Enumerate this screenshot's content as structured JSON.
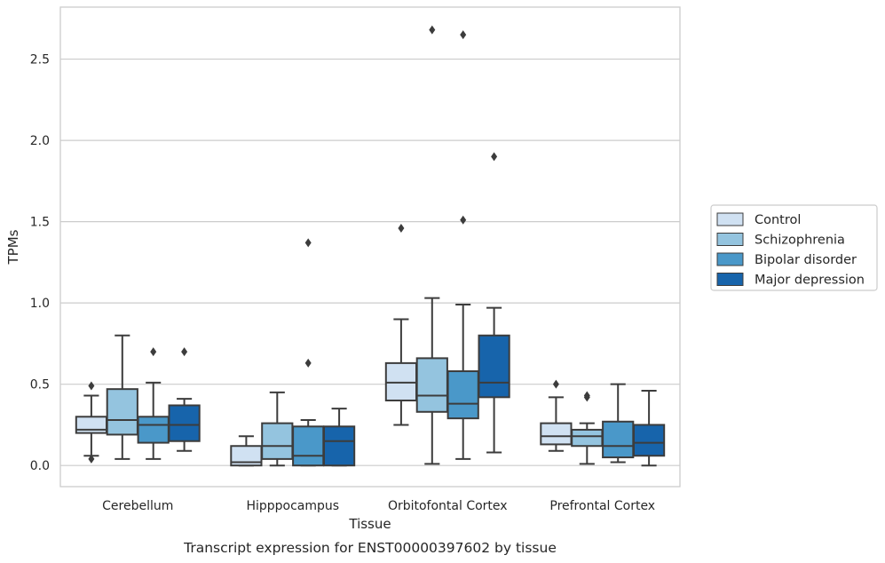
{
  "chart_data": {
    "type": "box",
    "xlabel": "Tissue",
    "ylabel": "TPMs",
    "caption": "Transcript expression for ENST00000397602 by tissue",
    "ylim": [
      -0.13,
      2.82
    ],
    "yticks": [
      0.0,
      0.5,
      1.0,
      1.5,
      2.0,
      2.5
    ],
    "ytick_labels": [
      "0.0",
      "0.5",
      "1.0",
      "1.5",
      "2.0",
      "2.5"
    ],
    "grid": "horizontal",
    "legend_position": "right",
    "categories": [
      "Cerebellum",
      "Hipppocampus",
      "Orbitofontal Cortex",
      "Prefrontal Cortex"
    ],
    "series": [
      {
        "name": "Control",
        "color": "#d0e1f2",
        "boxes": [
          {
            "whislo": 0.06,
            "q1": 0.2,
            "med": 0.22,
            "q3": 0.3,
            "whishi": 0.43,
            "fliers": [
              0.49,
              0.04
            ]
          },
          {
            "whislo": 0.0,
            "q1": 0.0,
            "med": 0.02,
            "q3": 0.12,
            "whishi": 0.18,
            "fliers": []
          },
          {
            "whislo": 0.25,
            "q1": 0.4,
            "med": 0.51,
            "q3": 0.63,
            "whishi": 0.9,
            "fliers": [
              1.46
            ]
          },
          {
            "whislo": 0.09,
            "q1": 0.13,
            "med": 0.18,
            "q3": 0.26,
            "whishi": 0.42,
            "fliers": [
              0.5
            ]
          }
        ]
      },
      {
        "name": "Schizophrenia",
        "color": "#94c4df",
        "boxes": [
          {
            "whislo": 0.04,
            "q1": 0.19,
            "med": 0.28,
            "q3": 0.47,
            "whishi": 0.8,
            "fliers": []
          },
          {
            "whislo": 0.0,
            "q1": 0.04,
            "med": 0.12,
            "q3": 0.26,
            "whishi": 0.45,
            "fliers": []
          },
          {
            "whislo": 0.01,
            "q1": 0.33,
            "med": 0.43,
            "q3": 0.66,
            "whishi": 1.03,
            "fliers": [
              2.68
            ]
          },
          {
            "whislo": 0.01,
            "q1": 0.12,
            "med": 0.18,
            "q3": 0.22,
            "whishi": 0.26,
            "fliers": [
              0.43,
              0.42
            ]
          }
        ]
      },
      {
        "name": "Bipolar disorder",
        "color": "#4a98c9",
        "boxes": [
          {
            "whislo": 0.04,
            "q1": 0.14,
            "med": 0.25,
            "q3": 0.3,
            "whishi": 0.51,
            "fliers": [
              0.7
            ]
          },
          {
            "whislo": 0.0,
            "q1": 0.0,
            "med": 0.06,
            "q3": 0.24,
            "whishi": 0.28,
            "fliers": [
              1.37,
              0.63
            ]
          },
          {
            "whislo": 0.04,
            "q1": 0.29,
            "med": 0.38,
            "q3": 0.58,
            "whishi": 0.99,
            "fliers": [
              2.65,
              1.51
            ]
          },
          {
            "whislo": 0.02,
            "q1": 0.05,
            "med": 0.12,
            "q3": 0.27,
            "whishi": 0.5,
            "fliers": []
          }
        ]
      },
      {
        "name": "Major depression",
        "color": "#1764ab",
        "boxes": [
          {
            "whislo": 0.09,
            "q1": 0.15,
            "med": 0.25,
            "q3": 0.37,
            "whishi": 0.41,
            "fliers": [
              0.7
            ]
          },
          {
            "whislo": 0.0,
            "q1": 0.0,
            "med": 0.15,
            "q3": 0.24,
            "whishi": 0.35,
            "fliers": []
          },
          {
            "whislo": 0.08,
            "q1": 0.42,
            "med": 0.51,
            "q3": 0.8,
            "whishi": 0.97,
            "fliers": [
              1.9
            ]
          },
          {
            "whislo": 0.0,
            "q1": 0.06,
            "med": 0.14,
            "q3": 0.25,
            "whishi": 0.46,
            "fliers": []
          }
        ]
      }
    ]
  }
}
